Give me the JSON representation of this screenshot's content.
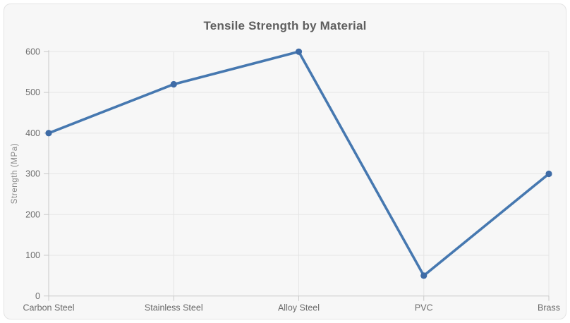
{
  "card": {
    "background": "#f7f7f7",
    "border_color": "#e3e3e3"
  },
  "chart_data": {
    "type": "line",
    "title": "Tensile Strength by Material",
    "categories": [
      "Carbon Steel",
      "Stainless Steel",
      "Alloy Steel",
      "PVC",
      "Brass"
    ],
    "values": [
      400,
      520,
      600,
      50,
      300
    ],
    "xlabel": "",
    "ylabel": "Strength (MPa)",
    "ylim": [
      0,
      600
    ],
    "yticks": [
      0,
      100,
      200,
      300,
      400,
      500,
      600
    ],
    "grid": true,
    "legend": false,
    "colors": {
      "line": "#4678b0",
      "marker": "#3e6ba6",
      "grid": "#e5e5e5",
      "axis": "#c9c9c9",
      "tick_label": "#6b6b6b",
      "title": "#5f5f5f",
      "ylabel": "#8a8a8a"
    }
  }
}
